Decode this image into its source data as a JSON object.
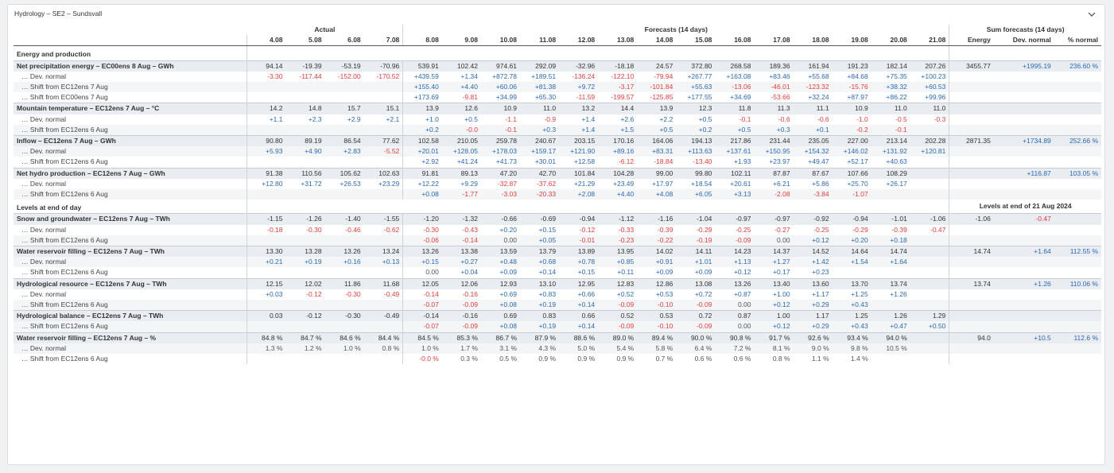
{
  "panel": {
    "title": "Hydrology – SE2 – Sundsvall"
  },
  "headers": {
    "actual": "Actual",
    "forecasts": "Forecasts (14 days)",
    "sum": "Sum forecasts (14 days)",
    "dates": [
      "4.08",
      "5.08",
      "6.08",
      "7.08",
      "8.08",
      "9.08",
      "10.08",
      "11.08",
      "12.08",
      "13.08",
      "14.08",
      "15.08",
      "16.08",
      "17.08",
      "18.08",
      "19.08",
      "20.08",
      "21.08"
    ],
    "sum_cols": [
      "Energy",
      "Dev. normal",
      "% normal"
    ]
  },
  "rows": [
    {
      "type": "section",
      "label": "Energy and production",
      "note": ""
    },
    {
      "type": "main",
      "label": "Net precipitation energy – EC00ens 8 Aug – GWh",
      "vals": [
        "94.14",
        "-19.39",
        "-53.19",
        "-70.96",
        "539.91",
        "102.42",
        "974.61",
        "292.09",
        "-32.96",
        "-18.18",
        "24.57",
        "372.80",
        "268.58",
        "189.36",
        "161.94",
        "191.23",
        "182.14",
        "207.26"
      ],
      "sum": [
        "3455.77",
        "+1995.19",
        "236.60 %"
      ]
    },
    {
      "type": "sub",
      "label": "… Dev. normal",
      "vals": [
        "-3.30",
        "-117.44",
        "-152.00",
        "-170.52",
        "+439.59",
        "+1.34",
        "+872.78",
        "+189.51",
        "-136.24",
        "-122.10",
        "-79.94",
        "+267.77",
        "+163.08",
        "+83.46",
        "+55.68",
        "+84.68",
        "+75.35",
        "+100.23"
      ],
      "sum": [
        "",
        "",
        ""
      ]
    },
    {
      "type": "sub",
      "label": "… Shift from EC12ens 7 Aug",
      "vals": [
        "",
        "",
        "",
        "",
        "+155.40",
        "+4.40",
        "+60.06",
        "+81.38",
        "+9.72",
        "-3.17",
        "-101.84",
        "+55.63",
        "-13.06",
        "-46.01",
        "-123.32",
        "-15.76",
        "+38.32",
        "+60.53"
      ],
      "sum": [
        "",
        "",
        ""
      ]
    },
    {
      "type": "sub",
      "label": "… Shift from EC00ens 7 Aug",
      "vals": [
        "",
        "",
        "",
        "",
        "+173.69",
        "-9.81",
        "+34.99",
        "+65.30",
        "-11.59",
        "-199.57",
        "-125.85",
        "+177.55",
        "+34.69",
        "-53.66",
        "+32.24",
        "+87.97",
        "+86.22",
        "+99.96"
      ],
      "sum": [
        "",
        "",
        ""
      ]
    },
    {
      "type": "main",
      "label": "Mountain temperature – EC12ens 7 Aug – °C",
      "vals": [
        "14.2",
        "14.8",
        "15.7",
        "15.1",
        "13.9",
        "12.6",
        "10.9",
        "11.0",
        "13.2",
        "14.4",
        "13.9",
        "12.3",
        "11.8",
        "11.3",
        "11.1",
        "10.9",
        "11.0",
        "11.0"
      ],
      "sum": [
        "",
        "",
        ""
      ]
    },
    {
      "type": "sub",
      "label": "… Dev. normal",
      "vals": [
        "+1.1",
        "+2.3",
        "+2.9",
        "+2.1",
        "+1.0",
        "+0.5",
        "-1.1",
        "-0.9",
        "+1.4",
        "+2.6",
        "+2.2",
        "+0.5",
        "-0.1",
        "-0.6",
        "-0.6",
        "-1.0",
        "-0.5",
        "-0.3"
      ],
      "sum": [
        "",
        "",
        ""
      ]
    },
    {
      "type": "sub",
      "label": "… Shift from EC12ens 6 Aug",
      "vals": [
        "",
        "",
        "",
        "",
        "+0.2",
        "-0.0",
        "-0.1",
        "+0.3",
        "+1.4",
        "+1.5",
        "+0.5",
        "+0.2",
        "+0.5",
        "+0.3",
        "+0.1",
        "-0.2",
        "-0.1",
        ""
      ],
      "sum": [
        "",
        "",
        ""
      ]
    },
    {
      "type": "main",
      "label": "Inflow – EC12ens 7 Aug – GWh",
      "vals": [
        "90.80",
        "89.19",
        "86.54",
        "77.62",
        "102.58",
        "210.05",
        "259.78",
        "240.67",
        "203.15",
        "170.16",
        "164.06",
        "194.13",
        "217.86",
        "231.44",
        "235.05",
        "227.00",
        "213.14",
        "202.28"
      ],
      "sum": [
        "2871.35",
        "+1734.89",
        "252.66 %"
      ]
    },
    {
      "type": "sub",
      "label": "… Dev. normal",
      "vals": [
        "+5.93",
        "+4.90",
        "+2.83",
        "-5.52",
        "+20.01",
        "+128.05",
        "+178.03",
        "+159.17",
        "+121.90",
        "+89.16",
        "+83.31",
        "+113.63",
        "+137.61",
        "+150.95",
        "+154.32",
        "+146.02",
        "+131.92",
        "+120.81"
      ],
      "sum": [
        "",
        "",
        ""
      ]
    },
    {
      "type": "sub",
      "label": "… Shift from EC12ens 6 Aug",
      "vals": [
        "",
        "",
        "",
        "",
        "+2.92",
        "+41.24",
        "+41.73",
        "+30.01",
        "+12.58",
        "-6.12",
        "-18.84",
        "-13.40",
        "+1.93",
        "+23.97",
        "+49.47",
        "+52.17",
        "+40.63",
        ""
      ],
      "sum": [
        "",
        "",
        ""
      ]
    },
    {
      "type": "main",
      "label": "Net hydro production – EC12ens 7 Aug – GWh",
      "vals": [
        "91.38",
        "110.56",
        "105.62",
        "102.63",
        "91.81",
        "89.13",
        "47.20",
        "42.70",
        "101.84",
        "104.28",
        "99.00",
        "99.80",
        "102.11",
        "87.87",
        "87.67",
        "107.66",
        "108.29",
        ""
      ],
      "sum": [
        "",
        "+116.87",
        "103.05 %"
      ]
    },
    {
      "type": "sub",
      "label": "… Dev. normal",
      "vals": [
        "+12.80",
        "+31.72",
        "+26.53",
        "+23.29",
        "+12.22",
        "+9.29",
        "-32.87",
        "-37.62",
        "+21.29",
        "+23.49",
        "+17.97",
        "+18.54",
        "+20.61",
        "+6.21",
        "+5.86",
        "+25.70",
        "+26.17",
        ""
      ],
      "sum": [
        "",
        "",
        ""
      ]
    },
    {
      "type": "sub",
      "label": "… Shift from EC12ens 6 Aug",
      "vals": [
        "",
        "",
        "",
        "",
        "+0.08",
        "-1.77",
        "-3.03",
        "-20.33",
        "+2.08",
        "+4.40",
        "+4.08",
        "+6.05",
        "+3.13",
        "-2.08",
        "-3.84",
        "-1.07",
        "",
        ""
      ],
      "sum": [
        "",
        "",
        ""
      ]
    },
    {
      "type": "section",
      "label": "Levels at end of day",
      "note": "Levels at end of 21 Aug 2024"
    },
    {
      "type": "main",
      "label": "Snow and groundwater – EC12ens 7 Aug – TWh",
      "vals": [
        "-1.15",
        "-1.26",
        "-1.40",
        "-1.55",
        "-1.20",
        "-1.32",
        "-0.66",
        "-0.69",
        "-0.94",
        "-1.12",
        "-1.16",
        "-1.04",
        "-0.97",
        "-0.97",
        "-0.92",
        "-0.94",
        "-1.01",
        "-1.06"
      ],
      "sum": [
        "-1.06",
        "-0.47",
        ""
      ]
    },
    {
      "type": "sub",
      "label": "… Dev. normal",
      "vals": [
        "-0.18",
        "-0.30",
        "-0.46",
        "-0.62",
        "-0.30",
        "-0.43",
        "+0.20",
        "+0.15",
        "-0.12",
        "-0.33",
        "-0.39",
        "-0.29",
        "-0.25",
        "-0.27",
        "-0.25",
        "-0.29",
        "-0.39",
        "-0.47"
      ],
      "sum": [
        "",
        "",
        ""
      ]
    },
    {
      "type": "sub",
      "label": "… Shift from EC12ens 6 Aug",
      "vals": [
        "",
        "",
        "",
        "",
        "-0.06",
        "-0.14",
        "0.00",
        "+0.05",
        "-0.01",
        "-0.23",
        "-0.22",
        "-0.19",
        "-0.09",
        "0.00",
        "+0.12",
        "+0.20",
        "+0.18",
        ""
      ],
      "sum": [
        "",
        "",
        ""
      ]
    },
    {
      "type": "main",
      "label": "Water reservoir filling – EC12ens 7 Aug – TWh",
      "vals": [
        "13.30",
        "13.28",
        "13.26",
        "13.24",
        "13.26",
        "13.38",
        "13.59",
        "13.79",
        "13.89",
        "13.95",
        "14.02",
        "14.11",
        "14.23",
        "14.37",
        "14.52",
        "14.64",
        "14.74",
        ""
      ],
      "sum": [
        "14.74",
        "+1.64",
        "112.55 %"
      ]
    },
    {
      "type": "sub",
      "label": "… Dev. normal",
      "vals": [
        "+0.21",
        "+0.19",
        "+0.16",
        "+0.13",
        "+0.15",
        "+0.27",
        "+0.48",
        "+0.68",
        "+0.78",
        "+0.85",
        "+0.91",
        "+1.01",
        "+1.13",
        "+1.27",
        "+1.42",
        "+1.54",
        "+1.64",
        ""
      ],
      "sum": [
        "",
        "",
        ""
      ]
    },
    {
      "type": "sub",
      "label": "… Shift from EC12ens 6 Aug",
      "vals": [
        "",
        "",
        "",
        "",
        "0.00",
        "+0.04",
        "+0.09",
        "+0.14",
        "+0.15",
        "+0.11",
        "+0.09",
        "+0.09",
        "+0.12",
        "+0.17",
        "+0.23",
        "",
        "",
        ""
      ],
      "sum": [
        "",
        "",
        ""
      ]
    },
    {
      "type": "main",
      "label": "Hydrological resource – EC12ens 7 Aug – TWh",
      "vals": [
        "12.15",
        "12.02",
        "11.86",
        "11.68",
        "12.05",
        "12.06",
        "12.93",
        "13.10",
        "12.95",
        "12.83",
        "12.86",
        "13.08",
        "13.26",
        "13.40",
        "13.60",
        "13.70",
        "13.74",
        ""
      ],
      "sum": [
        "13.74",
        "+1.26",
        "110.06 %"
      ]
    },
    {
      "type": "sub",
      "label": "… Dev. normal",
      "vals": [
        "+0.03",
        "-0.12",
        "-0.30",
        "-0.49",
        "-0.14",
        "-0.16",
        "+0.69",
        "+0.83",
        "+0.66",
        "+0.52",
        "+0.53",
        "+0.72",
        "+0.87",
        "+1.00",
        "+1.17",
        "+1.25",
        "+1.26",
        ""
      ],
      "sum": [
        "",
        "",
        ""
      ]
    },
    {
      "type": "sub",
      "label": "… Shift from EC12ens 6 Aug",
      "vals": [
        "",
        "",
        "",
        "",
        "-0.07",
        "-0.09",
        "+0.08",
        "+0.19",
        "+0.14",
        "-0.09",
        "-0.10",
        "-0.09",
        "0.00",
        "+0.12",
        "+0.29",
        "+0.43",
        "",
        ""
      ],
      "sum": [
        "",
        "",
        ""
      ]
    },
    {
      "type": "main",
      "label": "Hydrological balance – EC12ens 7 Aug – TWh",
      "vals": [
        "0.03",
        "-0.12",
        "-0.30",
        "-0.49",
        "-0.14",
        "-0.16",
        "0.69",
        "0.83",
        "0.66",
        "0.52",
        "0.53",
        "0.72",
        "0.87",
        "1.00",
        "1.17",
        "1.25",
        "1.26",
        "1.29"
      ],
      "sum": [
        "",
        "",
        ""
      ]
    },
    {
      "type": "sub",
      "label": "… Shift from EC12ens 6 Aug",
      "vals": [
        "",
        "",
        "",
        "",
        "-0.07",
        "-0.09",
        "+0.08",
        "+0.19",
        "+0.14",
        "-0.09",
        "-0.10",
        "-0.09",
        "0.00",
        "+0.12",
        "+0.29",
        "+0.43",
        "+0.47",
        "+0.50"
      ],
      "sum": [
        "",
        "",
        ""
      ]
    },
    {
      "type": "main",
      "label": "Water reservoir filling – EC12ens 7 Aug – %",
      "vals": [
        "84.8 %",
        "84.7 %",
        "84.6 %",
        "84.4 %",
        "84.5 %",
        "85.3 %",
        "86.7 %",
        "87.9 %",
        "88.6 %",
        "89.0 %",
        "89.4 %",
        "90.0 %",
        "90.8 %",
        "91.7 %",
        "92.6 %",
        "93.4 %",
        "94.0 %",
        ""
      ],
      "sum": [
        "94.0",
        "+10.5",
        "112.6 %"
      ]
    },
    {
      "type": "sub",
      "label": "… Dev. normal",
      "vals": [
        "1.3 %",
        "1.2 %",
        "1.0 %",
        "0.8 %",
        "1.0 %",
        "1.7 %",
        "3.1 %",
        "4.3 %",
        "5.0 %",
        "5.4 %",
        "5.8 %",
        "6.4 %",
        "7.2 %",
        "8.1 %",
        "9.0 %",
        "9.8 %",
        "10.5 %",
        ""
      ],
      "sum": [
        "",
        "",
        ""
      ]
    },
    {
      "type": "sub",
      "label": "… Shift from EC12ens 6 Aug",
      "vals": [
        "",
        "",
        "",
        "",
        "-0.0 %",
        "0.3 %",
        "0.5 %",
        "0.9 %",
        "0.9 %",
        "0.9 %",
        "0.7 %",
        "0.6 %",
        "0.6 %",
        "0.8 %",
        "1.1 %",
        "1.4 %",
        "",
        ""
      ],
      "sum": [
        "",
        "",
        ""
      ]
    }
  ],
  "colors": {
    "positive": "#2a69b4",
    "negative": "#e03c3c",
    "row_band": "#e9ecf0"
  },
  "icons": {
    "collapse": "chevron-down-icon"
  }
}
